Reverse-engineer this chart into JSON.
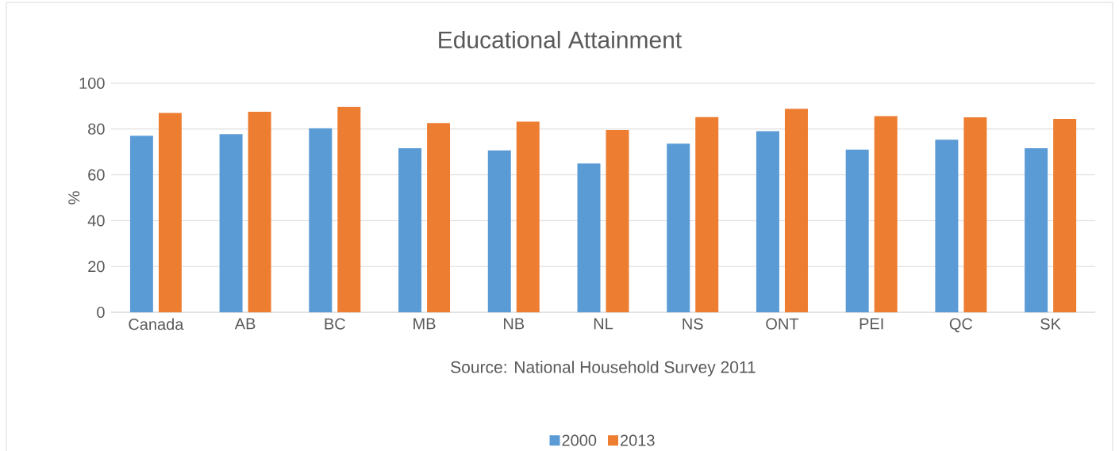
{
  "chart_data": {
    "type": "bar",
    "title": "Educational Attainment",
    "ylabel": "%",
    "annotations": [
      "Source: National Household Survey 2011"
    ],
    "categories": [
      "Canada",
      "AB",
      "BC",
      "MB",
      "NB",
      "NL",
      "NS",
      "ONT",
      "PEI",
      "QC",
      "SK"
    ],
    "series": [
      {
        "name": "2000",
        "color": "#5b9bd5",
        "values": [
          77.1,
          77.8,
          80.4,
          71.6,
          70.7,
          65,
          73.6,
          79.1,
          71.0,
          75.3,
          71.6
        ]
      },
      {
        "name": "2013",
        "color": "#ed7d31",
        "values": [
          87.0,
          87.5,
          89.7,
          82.6,
          83.2,
          79.6,
          85.2,
          88.8,
          85.6,
          85.1,
          84.4
        ]
      }
    ],
    "ylim": [
      0,
      100
    ],
    "yticks": [
      0,
      20,
      40,
      60,
      80,
      100
    ],
    "grid": "y",
    "legend": "bottom"
  }
}
